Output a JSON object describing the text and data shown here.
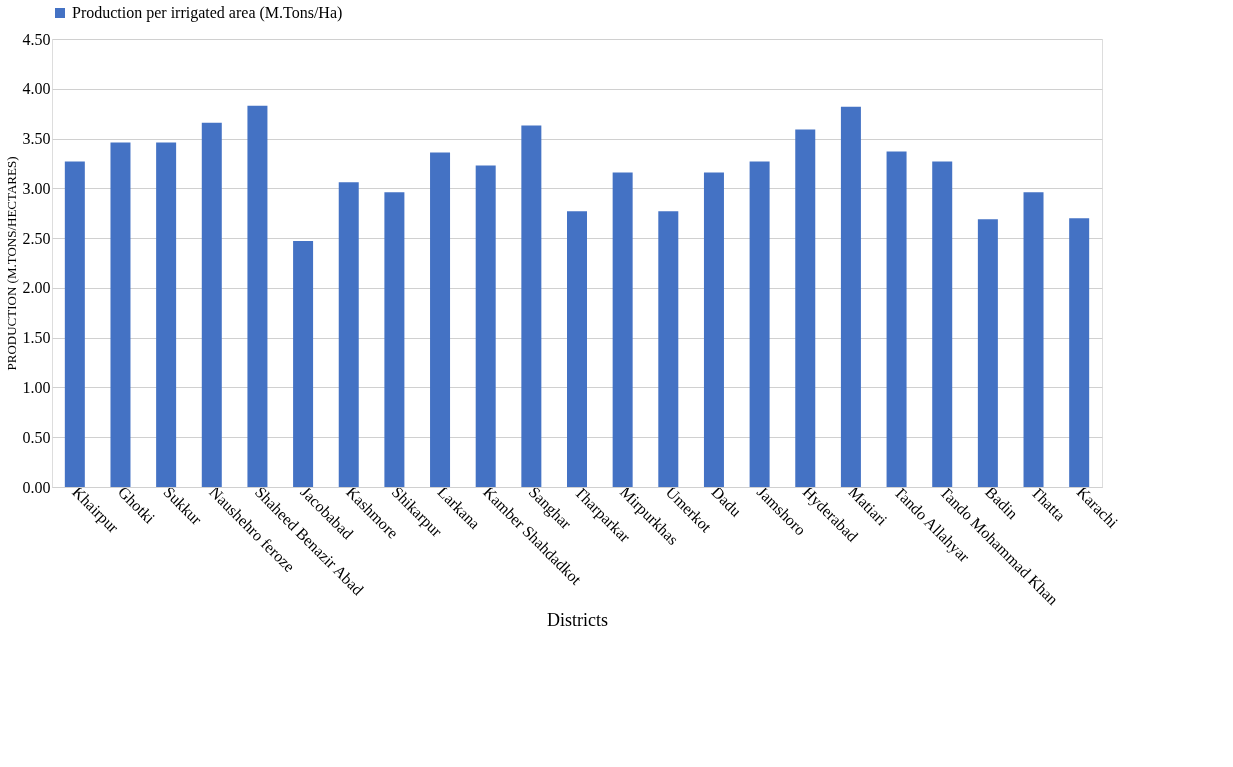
{
  "chart_data": {
    "type": "bar",
    "categories": [
      "Khairpur",
      "Ghotki",
      "Sukkur",
      "Naushehro feroze",
      "Shaheed Benazir Abad",
      "Jacobabad",
      "Kashmore",
      "Shikarpur",
      "Larkana",
      "Kamber Shahdadkot",
      "Sanghar",
      "Tharparkar",
      "Mirpurkhas",
      "Umerkot",
      "Dadu",
      "Jamshoro",
      "Hyderabad",
      "Matiari",
      "Tando Allahyar",
      "Tando Mohammad Khan",
      "Badin",
      "Thatta",
      "Karachi"
    ],
    "series": [
      {
        "name": "Production per irrigated area (M.Tons/Ha)",
        "color": "#4472c4",
        "values": [
          3.27,
          3.46,
          3.46,
          3.66,
          3.83,
          2.47,
          3.06,
          2.96,
          3.36,
          3.23,
          3.63,
          2.77,
          3.16,
          2.77,
          3.16,
          3.27,
          3.59,
          3.82,
          3.37,
          3.27,
          2.69,
          2.96,
          2.7
        ]
      }
    ],
    "xlabel": "Districts",
    "ylabel": "PRODUCTION (M.TONS/HECTARES)",
    "ylim": [
      0,
      4.5
    ],
    "yticks": [
      {
        "value": 0,
        "label": "0.00"
      },
      {
        "value": 0.5,
        "label": "0.50"
      },
      {
        "value": 1,
        "label": "1.00"
      },
      {
        "value": 1.5,
        "label": "1.50"
      },
      {
        "value": 2,
        "label": "2.00"
      },
      {
        "value": 2.5,
        "label": "2.50"
      },
      {
        "value": 3,
        "label": "3.00"
      },
      {
        "value": 3.5,
        "label": "3.50"
      },
      {
        "value": 4,
        "label": "4.00"
      },
      {
        "value": 4.5,
        "label": "4.50"
      }
    ],
    "grid": "y",
    "legend": "top"
  }
}
